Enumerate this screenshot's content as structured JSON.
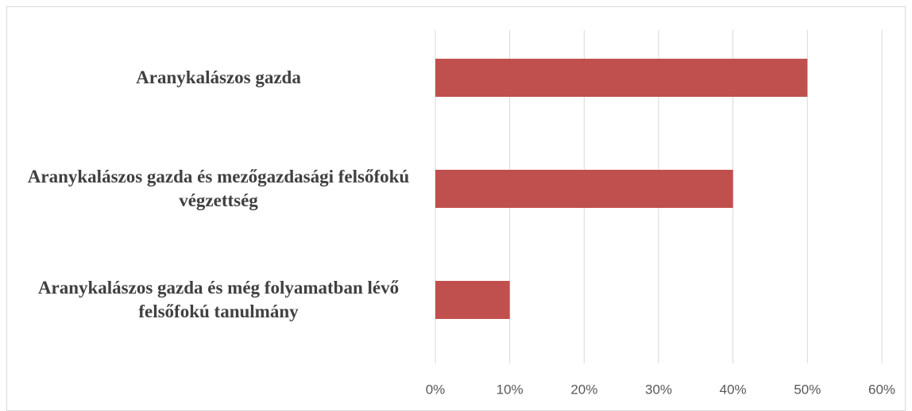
{
  "chart_data": {
    "type": "barh",
    "categories": [
      "Aranykalászos gazda",
      "Aranykalászos gazda és mezőgazdasági felsőfokú végzettség",
      "Aranykalászos gazda és még folyamatban lévő felsőfokú tanulmány"
    ],
    "values": [
      50,
      40,
      10
    ],
    "color": "#c0504d",
    "xlim": [
      0,
      60
    ],
    "xticks": [
      {
        "value": 0,
        "label": "0%"
      },
      {
        "value": 10,
        "label": "10%"
      },
      {
        "value": 20,
        "label": "20%"
      },
      {
        "value": 30,
        "label": "30%"
      },
      {
        "value": 40,
        "label": "40%"
      },
      {
        "value": 50,
        "label": "50%"
      },
      {
        "value": 60,
        "label": "60%"
      }
    ],
    "grid": true
  }
}
